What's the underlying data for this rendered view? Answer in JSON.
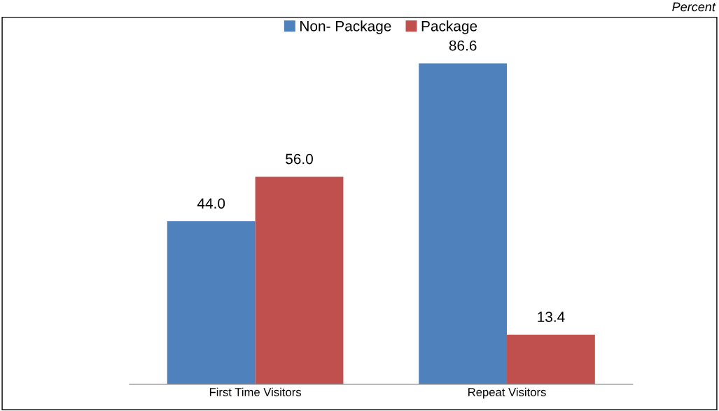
{
  "chart_data": {
    "type": "bar",
    "categories": [
      "First Time Visitors",
      "Repeat Visitors"
    ],
    "series": [
      {
        "name": "Non- Package",
        "color": "#4f81bd",
        "values": [
          44.0,
          86.6
        ],
        "value_labels": [
          "44.0",
          "86.6"
        ]
      },
      {
        "name": "Package",
        "color": "#c0504d",
        "values": [
          56.0,
          13.4
        ],
        "value_labels": [
          "56.0",
          "13.4"
        ]
      }
    ],
    "legend": "top",
    "grid": false,
    "tick_labels": "x",
    "annotations": [
      "Percent"
    ]
  }
}
